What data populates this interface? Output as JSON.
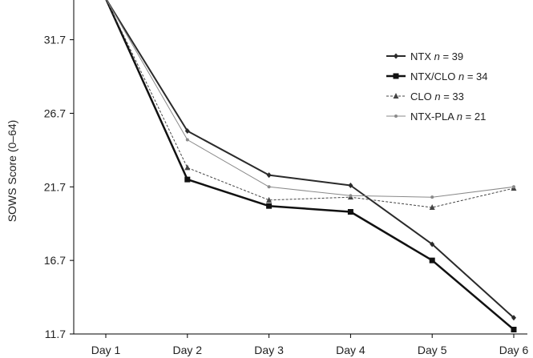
{
  "chart_data": {
    "type": "line",
    "title": "",
    "xlabel": "",
    "ylabel": "SOWS Score (0–64)",
    "categories": [
      "Day 1",
      "Day 2",
      "Day 3",
      "Day 4",
      "Day 5",
      "Day 6"
    ],
    "y_ticks": [
      "11.7",
      "16.7",
      "21.7",
      "26.7",
      "31.7"
    ],
    "ylim": [
      11.7,
      34.4
    ],
    "grid": false,
    "legend_position": "top-right",
    "series": [
      {
        "name": "NTX",
        "n_label": "n",
        "n_value": "= 39",
        "values": [
          34.5,
          25.5,
          22.5,
          21.8,
          17.8,
          12.8
        ],
        "color": "#2a2a2a",
        "dash": "",
        "stroke_width": 2,
        "marker": "diamond"
      },
      {
        "name": "NTX/CLO",
        "n_label": "n",
        "n_value": "= 34",
        "values": [
          34.5,
          22.2,
          20.4,
          20.0,
          16.7,
          12.0
        ],
        "color": "#111111",
        "dash": "",
        "stroke_width": 2.5,
        "marker": "square"
      },
      {
        "name": "CLO",
        "n_label": "n",
        "n_value": "= 33",
        "values": [
          34.5,
          23.0,
          20.8,
          21.0,
          20.3,
          21.6
        ],
        "color": "#444444",
        "dash": "3,2",
        "stroke_width": 1,
        "marker": "triangle"
      },
      {
        "name": "NTX-PLA",
        "n_label": "n",
        "n_value": "= 21",
        "values": [
          34.5,
          24.9,
          21.7,
          21.1,
          21.0,
          21.7
        ],
        "color": "#8a8a8a",
        "dash": "",
        "stroke_width": 1,
        "marker": "dot"
      }
    ]
  }
}
